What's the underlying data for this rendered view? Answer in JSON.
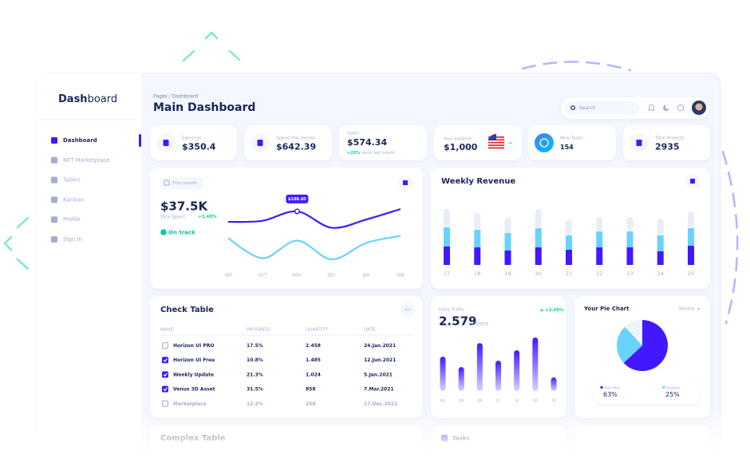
{
  "sidebar": {
    "brand": {
      "bold": "Dash",
      "light": "board"
    },
    "menu": [
      "Dashboard",
      "NFT Marketplace",
      "Tables",
      "Kanban",
      "Profile",
      "Sign In"
    ]
  },
  "header": {
    "breadcrumb": "Pages / Dashboard",
    "title": "Main Dashboard",
    "search": "Search"
  },
  "stats": [
    {
      "label": "Earnings",
      "value": "$350.4"
    },
    {
      "label": "Spend this month",
      "value": "$642.39"
    },
    {
      "label": "Sales",
      "value": "$574.34",
      "change": "+23%",
      "note": "since last month"
    },
    {
      "label": "Your balance",
      "value": "$1,000"
    },
    {
      "label": "New Tasks",
      "value": "154"
    },
    {
      "label": "Total Projects",
      "value": "2935"
    }
  ],
  "spending": {
    "button": "This month",
    "amount": "$37.5K",
    "caption": "Total Spent",
    "change": "+2.45%",
    "status": "On track",
    "chart": {
      "type": "line",
      "categories": [
        "SEP",
        "OCT",
        "NOV",
        "DEC",
        "JAN",
        "FEB"
      ],
      "series": [
        {
          "color": "#4318ff",
          "values": [
            90,
            92,
            108,
            80,
            94,
            112
          ],
          "value_labels": [
            null,
            null,
            "$108.00",
            null,
            null,
            null
          ]
        },
        {
          "color": "#6ad2ff",
          "values": [
            62,
            28,
            58,
            26,
            54,
            66
          ]
        }
      ]
    }
  },
  "weekly_revenue": {
    "title": "Weekly Revenue",
    "chart": {
      "type": "bar",
      "stacked": true,
      "categories": [
        "17",
        "18",
        "19",
        "20",
        "21",
        "22",
        "23",
        "24",
        "25"
      ],
      "series": [
        {
          "color": "#4318ff",
          "values": [
            23,
            22,
            18,
            22,
            19,
            22,
            22,
            17,
            24
          ]
        },
        {
          "color": "#6ad2ff",
          "values": [
            24,
            22,
            22,
            24,
            18,
            20,
            20,
            20,
            22
          ]
        },
        {
          "color": "#e9edf7",
          "values": [
            23,
            21,
            19,
            24,
            19,
            18,
            18,
            21,
            21
          ]
        }
      ]
    }
  },
  "check_table": {
    "title": "Check Table",
    "columns": [
      "NAME",
      "PROGRESS",
      "QUANTITY",
      "DATE"
    ],
    "rows": [
      {
        "checked": false,
        "cells": [
          "Horizon UI PRO",
          "17.5%",
          "2.458",
          "24.Jan.2021"
        ]
      },
      {
        "checked": true,
        "cells": [
          "Horizon UI Free",
          "10.8%",
          "1.485",
          "12.Jun.2021"
        ]
      },
      {
        "checked": true,
        "cells": [
          "Weekly Update",
          "21.3%",
          "1.024",
          "5.Jan.2021"
        ]
      },
      {
        "checked": true,
        "cells": [
          "Venus 3D Asset",
          "31.5%",
          "858",
          "7.Mar.2021"
        ]
      },
      {
        "checked": false,
        "cells": [
          "Marketplace",
          "12.2%",
          "258",
          "17.Dec.2021"
        ]
      }
    ]
  },
  "daily_traffic": {
    "title": "Daily Traffic",
    "change": "+2.45%",
    "total": "2.579",
    "unit": "Visitors",
    "chart": {
      "type": "bar",
      "categories": [
        "00",
        "04",
        "08",
        "12",
        "14",
        "16",
        "18"
      ],
      "values": [
        43,
        30,
        60,
        38,
        51,
        67,
        17
      ],
      "color": "#4318ff"
    }
  },
  "pie": {
    "title": "Your Pie Chart",
    "period": "Monthly",
    "chart": {
      "type": "pie",
      "categories": [
        "Your files",
        "System",
        null
      ],
      "values": [
        63,
        25,
        12
      ],
      "value_labels": [
        "63%",
        "25%",
        null
      ],
      "colors": [
        "#4318ff",
        "#6ad2ff",
        "#eff4fb"
      ]
    }
  },
  "faded": {
    "complex_table": "Complex Table",
    "tasks": "Tasks"
  }
}
